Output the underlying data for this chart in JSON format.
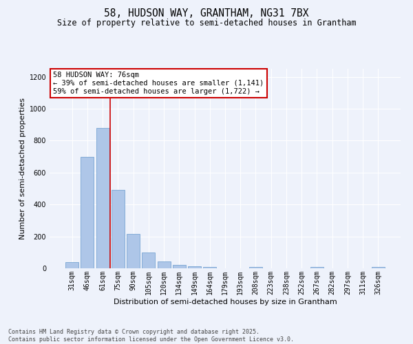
{
  "title1": "58, HUDSON WAY, GRANTHAM, NG31 7BX",
  "title2": "Size of property relative to semi-detached houses in Grantham",
  "xlabel": "Distribution of semi-detached houses by size in Grantham",
  "ylabel": "Number of semi-detached properties",
  "categories": [
    "31sqm",
    "46sqm",
    "61sqm",
    "75sqm",
    "90sqm",
    "105sqm",
    "120sqm",
    "134sqm",
    "149sqm",
    "164sqm",
    "179sqm",
    "193sqm",
    "208sqm",
    "223sqm",
    "238sqm",
    "252sqm",
    "267sqm",
    "282sqm",
    "297sqm",
    "311sqm",
    "326sqm"
  ],
  "values": [
    40,
    700,
    880,
    490,
    215,
    100,
    45,
    20,
    15,
    8,
    0,
    0,
    8,
    0,
    0,
    0,
    8,
    0,
    0,
    0,
    8
  ],
  "bar_color": "#aec6e8",
  "bar_edge_color": "#6699cc",
  "vline_color": "#cc0000",
  "vline_x_index": 3,
  "annotation_title": "58 HUDSON WAY: 76sqm",
  "annotation_line1": "← 39% of semi-detached houses are smaller (1,141)",
  "annotation_line2": "59% of semi-detached houses are larger (1,722) →",
  "annotation_box_color": "#cc0000",
  "ylim": [
    0,
    1250
  ],
  "yticks": [
    0,
    200,
    400,
    600,
    800,
    1000,
    1200
  ],
  "background_color": "#eef2fb",
  "grid_color": "#ffffff",
  "footer1": "Contains HM Land Registry data © Crown copyright and database right 2025.",
  "footer2": "Contains public sector information licensed under the Open Government Licence v3.0.",
  "title_fontsize": 10.5,
  "subtitle_fontsize": 8.5,
  "axis_label_fontsize": 8,
  "tick_fontsize": 7,
  "annotation_fontsize": 7.5,
  "footer_fontsize": 6.0
}
